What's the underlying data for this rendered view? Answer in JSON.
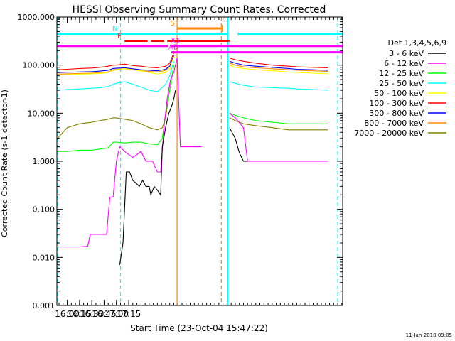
{
  "chart_data": {
    "type": "line",
    "title": "HESSI Observing Summary Count Rates, Corrected",
    "xlabel": "Start Time (23-Oct-04 15:47:22)",
    "ylabel": "Corrected Count Rate (s-1 detector-1)",
    "y_scale": "log",
    "ylim": [
      0.001,
      1000
    ],
    "xlim_minutes_of_day": [
      947.37,
      1296
    ],
    "x_ticks": [
      "16:00",
      "16:15",
      "16:30",
      "16:45",
      "17:00",
      "17:15"
    ],
    "y_ticks": [
      "0.001",
      "0.010",
      "0.100",
      "1.000",
      "10.000",
      "100.000",
      "1000.000"
    ],
    "footer_date": "11-Jan-2010 09:05",
    "legend_title": "Det 1,3,4,5,6,9",
    "legend_placement": "right",
    "grid": false,
    "series": [
      {
        "name": "3 - 6 keV",
        "color": "#000000",
        "x": [
          1024,
          1028,
          1032,
          1036,
          1040,
          1044,
          1048,
          1052,
          1056,
          1060,
          1062,
          1066,
          1070,
          1074,
          1076,
          1080,
          1084,
          1088,
          1090,
          1092
        ],
        "y": [
          0.007,
          0.02,
          0.6,
          0.6,
          0.4,
          0.35,
          0.3,
          0.4,
          0.3,
          0.3,
          0.2,
          0.3,
          0.25,
          0.2,
          2,
          5,
          10,
          15,
          20,
          30
        ]
      },
      {
        "name": "6 - 12 keV",
        "color": "#ff00ff",
        "x": [
          948,
          960,
          975,
          985,
          988,
          1000,
          1008,
          1012,
          1016,
          1020,
          1024,
          1032,
          1040,
          1050,
          1056,
          1060,
          1064,
          1070,
          1074,
          1078,
          1082,
          1086,
          1090,
          1094,
          1098,
          1102,
          1110,
          1118,
          1124
        ],
        "y": [
          0.0165,
          0.0165,
          0.0165,
          0.017,
          0.03,
          0.03,
          0.03,
          0.18,
          0.18,
          1,
          2,
          1.5,
          1.2,
          1.6,
          1,
          1,
          1,
          0.6,
          0.6,
          5,
          20,
          50,
          70,
          140,
          2,
          2,
          2,
          2,
          2
        ]
      },
      {
        "name": "12 - 25 keV",
        "color": "#00ff00",
        "x": [
          948,
          960,
          975,
          990,
          1000,
          1010,
          1016,
          1020,
          1030,
          1040,
          1050,
          1060,
          1070,
          1076,
          1080,
          1085,
          1090
        ],
        "y": [
          1.6,
          1.6,
          1.7,
          1.7,
          1.8,
          1.9,
          2.5,
          2.5,
          2.4,
          2.5,
          2.5,
          2.3,
          2.2,
          3,
          10,
          30,
          100
        ]
      },
      {
        "name": "25 - 50 keV",
        "color": "#00ffff",
        "x": [
          948,
          960,
          975,
          990,
          1000,
          1010,
          1016,
          1020,
          1030,
          1040,
          1050,
          1060,
          1070,
          1080,
          1085,
          1090
        ],
        "y": [
          30,
          31,
          32,
          33,
          34,
          36,
          40,
          42,
          45,
          40,
          35,
          30,
          28,
          40,
          60,
          120
        ]
      },
      {
        "name": "50 - 100 keV",
        "color": "#ffff00",
        "x": [
          948,
          960,
          975,
          990,
          1000,
          1010,
          1016,
          1020,
          1030,
          1040,
          1050,
          1060,
          1070,
          1080,
          1085,
          1090
        ],
        "y": [
          62,
          63,
          65,
          66,
          67,
          70,
          78,
          80,
          85,
          80,
          75,
          70,
          65,
          70,
          85,
          150
        ]
      },
      {
        "name": "100 - 300 keV",
        "color": "#ff0000",
        "x": [
          948,
          960,
          975,
          990,
          1000,
          1010,
          1016,
          1020,
          1030,
          1040,
          1050,
          1060,
          1070,
          1080,
          1085,
          1090
        ],
        "y": [
          80,
          82,
          85,
          87,
          90,
          95,
          100,
          100,
          105,
          98,
          95,
          90,
          88,
          95,
          110,
          180
        ]
      },
      {
        "name": "300 - 800 keV",
        "color": "#0000ff",
        "x": [
          948,
          960,
          975,
          990,
          1000,
          1010,
          1016,
          1020,
          1030,
          1040,
          1050,
          1060,
          1070,
          1080,
          1085,
          1090
        ],
        "y": [
          70,
          71,
          72,
          73,
          75,
          78,
          85,
          86,
          88,
          84,
          80,
          78,
          76,
          82,
          95,
          160
        ]
      },
      {
        "name": "800 - 7000 keV",
        "color": "#ff8800",
        "x": [
          948,
          960,
          975,
          990,
          1000,
          1010,
          1016,
          1020,
          1030,
          1040,
          1050,
          1060,
          1070,
          1080,
          1085,
          1090
        ],
        "y": [
          65,
          66,
          67,
          68,
          70,
          72,
          80,
          82,
          84,
          80,
          76,
          74,
          72,
          78,
          92,
          155
        ]
      },
      {
        "name": "7000 - 20000 keV",
        "color": "#808000",
        "x": [
          948,
          960,
          975,
          990,
          1000,
          1010,
          1016,
          1020,
          1030,
          1040,
          1050,
          1060,
          1070,
          1076,
          1080,
          1085,
          1090
        ],
        "y": [
          3,
          5,
          6,
          6.5,
          7,
          7.5,
          8,
          8,
          7.5,
          7,
          6,
          5,
          4.5,
          5,
          8,
          30,
          100
        ]
      }
    ],
    "after_gap_series": [
      {
        "color": "#ff0000",
        "x": [
          1158,
          1165,
          1175,
          1190,
          1210,
          1230,
          1240,
          1260,
          1278
        ],
        "y": [
          140,
          130,
          120,
          110,
          100,
          95,
          92,
          90,
          88
        ]
      },
      {
        "color": "#0000ff",
        "x": [
          1158,
          1165,
          1175,
          1190,
          1210,
          1230,
          1240,
          1260,
          1278
        ],
        "y": [
          120,
          110,
          100,
          95,
          90,
          85,
          82,
          80,
          78
        ]
      },
      {
        "color": "#ff8800",
        "x": [
          1158,
          1165,
          1175,
          1190,
          1210,
          1230,
          1240,
          1260,
          1278
        ],
        "y": [
          110,
          100,
          92,
          88,
          84,
          80,
          78,
          76,
          74
        ]
      },
      {
        "color": "#ffff00",
        "x": [
          1158,
          1165,
          1175,
          1190,
          1210,
          1230,
          1240,
          1260,
          1278
        ],
        "y": [
          100,
          90,
          85,
          80,
          76,
          72,
          70,
          68,
          66
        ]
      },
      {
        "color": "#00ffff",
        "x": [
          1158,
          1165,
          1175,
          1190,
          1210,
          1230,
          1240,
          1260,
          1278
        ],
        "y": [
          45,
          42,
          38,
          35,
          34,
          33,
          32,
          31,
          30
        ]
      },
      {
        "color": "#00ff00",
        "x": [
          1158,
          1165,
          1175,
          1190,
          1210,
          1230,
          1240,
          1260,
          1278
        ],
        "y": [
          10,
          9,
          8,
          7,
          6.5,
          6,
          6,
          6,
          6
        ]
      },
      {
        "color": "#808000",
        "x": [
          1158,
          1165,
          1175,
          1190,
          1210,
          1230,
          1240,
          1260,
          1278
        ],
        "y": [
          8,
          7,
          6,
          5.5,
          5,
          4.5,
          4.5,
          4.5,
          4.5
        ]
      },
      {
        "color": "#ff00ff",
        "x": [
          1158,
          1165,
          1175,
          1180,
          1200,
          1220,
          1240,
          1260,
          1278
        ],
        "y": [
          10,
          8,
          5,
          1,
          1,
          1,
          1,
          1,
          1
        ]
      },
      {
        "color": "#000000",
        "x": [
          1158,
          1165,
          1170,
          1175,
          1180
        ],
        "y": [
          5,
          3,
          1.5,
          1,
          1
        ]
      }
    ],
    "flag_bars": [
      {
        "label": "N",
        "color": "#00ffff",
        "y": 450,
        "segments": [
          [
            947.37,
            1018
          ],
          [
            1018,
            1156
          ],
          [
            1168,
            1296
          ]
        ]
      },
      {
        "label": "F",
        "color": "#ff0000",
        "y": 320,
        "segments": [
          [
            1030,
            1058
          ],
          [
            1062,
            1078
          ],
          [
            1082,
            1158
          ]
        ]
      },
      {
        "label": "A1",
        "color": "#ff00ff",
        "y": 250,
        "segments": [
          [
            947.37,
            1083
          ],
          [
            1086,
            1296
          ]
        ]
      },
      {
        "label": "AD",
        "color": "#ff00ff",
        "y": 185,
        "segments": [
          [
            1087,
            1296
          ]
        ]
      },
      {
        "label": "S",
        "color": "#ff8800",
        "y": 580,
        "segments": [
          [
            1094,
            1149
          ]
        ]
      }
    ],
    "vertical_lines": [
      {
        "color": "#00ffff",
        "x": 947.7,
        "dashed": true
      },
      {
        "color": "#00ffff",
        "x": 1025,
        "dashed": true
      },
      {
        "color": "#ff8800",
        "x": 1094,
        "dashed": false
      },
      {
        "color": "#ff8800",
        "x": 1148,
        "dashed": true
      },
      {
        "color": "#00ffff",
        "x": 1156,
        "dashed": false
      },
      {
        "color": "#00ffff",
        "x": 1290,
        "dashed": true
      }
    ]
  }
}
